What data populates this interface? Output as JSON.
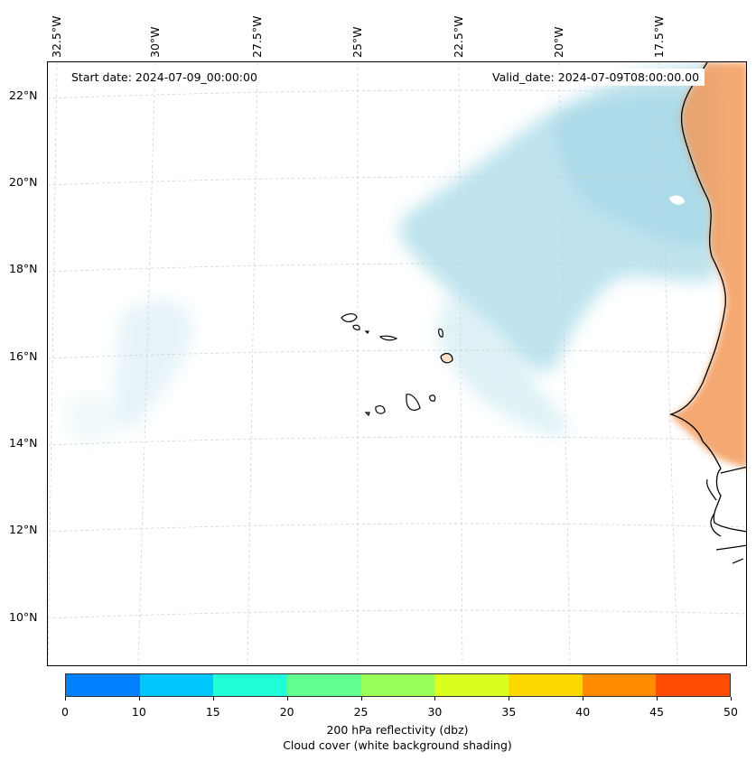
{
  "map": {
    "start_date": "Start date: 2024-07-09_00:00:00",
    "valid_date": "Valid_date: 2024-07-09T08:00:00.00",
    "lon_labels": [
      "32.5°W",
      "30°W",
      "27.5°W",
      "25°W",
      "22.5°W",
      "20°W",
      "17.5°W"
    ],
    "lat_labels": [
      "22°N",
      "20°N",
      "18°N",
      "16°N",
      "14°N",
      "12°N",
      "10°N"
    ],
    "land_color": "#f39a5a",
    "cloud_color": "#a9dbe8"
  },
  "colorbar": {
    "tick_labels": [
      "0",
      "10",
      "15",
      "20",
      "25",
      "30",
      "35",
      "40",
      "45",
      "50"
    ],
    "colors": [
      "#0080ff",
      "#00c8ff",
      "#20ffd8",
      "#60ff90",
      "#98ff58",
      "#d8ff20",
      "#ffd800",
      "#ff8c00",
      "#ff4c00"
    ],
    "title": "200 hPa reflectivity (dbz)",
    "subtitle": "Cloud cover (white background shading)"
  }
}
